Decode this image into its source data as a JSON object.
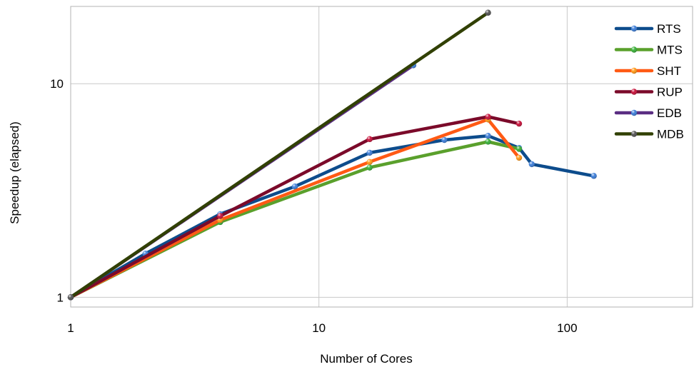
{
  "chart_data": {
    "type": "line",
    "xlabel": "Number of Cores",
    "ylabel": "Speedup (elapsed)",
    "xscale": "log",
    "yscale": "log",
    "xlim": [
      1,
      320
    ],
    "ylim": [
      0.9,
      23
    ],
    "grid": true,
    "legend_position": "top-right",
    "x_ticks": [
      {
        "value": 1,
        "label": "1"
      },
      {
        "value": 10,
        "label": "10"
      },
      {
        "value": 100,
        "label": "100"
      }
    ],
    "y_ticks": [
      {
        "value": 1,
        "label": "1"
      },
      {
        "value": 10,
        "label": "10"
      }
    ],
    "series": [
      {
        "name": "RTS",
        "color": "#0d4c8c",
        "marker": "#3f7fd8",
        "x": [
          1,
          2,
          4,
          8,
          16,
          32,
          48,
          64,
          72,
          128
        ],
        "y": [
          1,
          1.6,
          2.45,
          3.3,
          4.75,
          5.45,
          5.7,
          5.0,
          4.2,
          3.7
        ]
      },
      {
        "name": "MTS",
        "color": "#5aa02c",
        "marker": "#3ab03a",
        "x": [
          1,
          4,
          16,
          48,
          64
        ],
        "y": [
          1,
          2.25,
          4.05,
          5.35,
          4.95
        ]
      },
      {
        "name": "SHT",
        "color": "#ff5a14",
        "marker": "#ff9a1a",
        "x": [
          1,
          4,
          16,
          48,
          64
        ],
        "y": [
          1,
          2.3,
          4.3,
          6.8,
          4.5
        ]
      },
      {
        "name": "RUP",
        "color": "#7b0a2a",
        "marker": "#c8143c",
        "x": [
          1,
          4,
          16,
          48,
          64
        ],
        "y": [
          1,
          2.4,
          5.5,
          7.0,
          6.5
        ]
      },
      {
        "name": "EDB",
        "color": "#5a2d82",
        "marker": "#3f7fd8",
        "x": [
          1,
          24
        ],
        "y": [
          1,
          12.2
        ]
      },
      {
        "name": "MDB",
        "color": "#314004",
        "marker": "#555555",
        "x": [
          1,
          48
        ],
        "y": [
          1,
          21.5
        ]
      }
    ]
  }
}
